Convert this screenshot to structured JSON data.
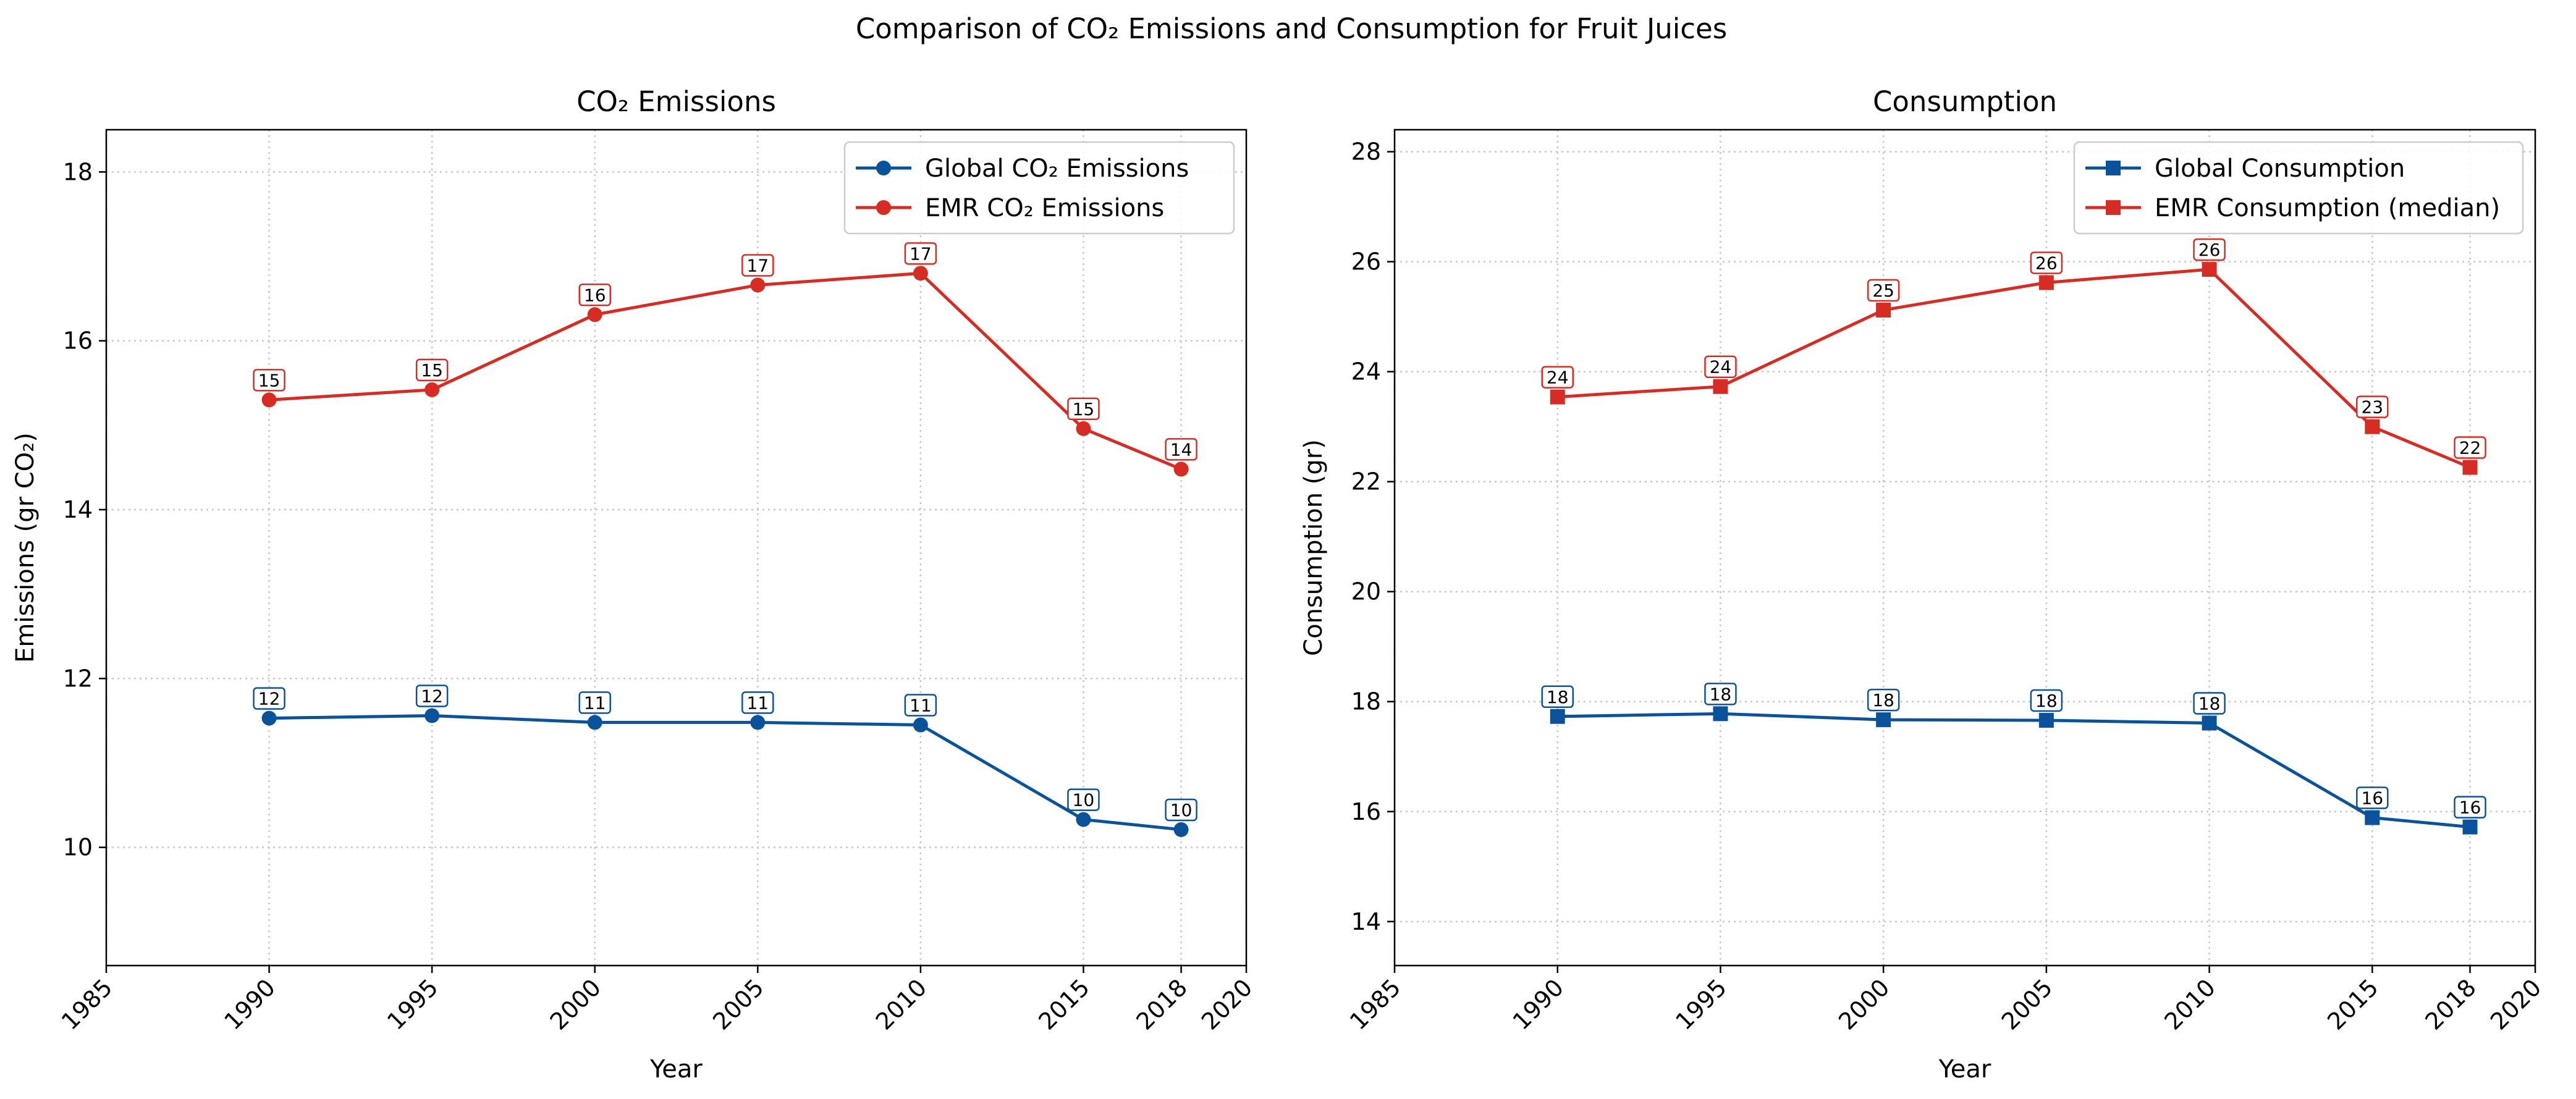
{
  "figure": {
    "title": "Comparison of CO₂ Emissions and Consumption for Fruit Juices"
  },
  "chart_data": [
    {
      "type": "line",
      "title": "CO₂ Emissions",
      "xlabel": "Year",
      "ylabel": "Emissions (gr CO₂)",
      "xlim": [
        1985,
        2020
      ],
      "ylim": [
        8.6,
        18.5
      ],
      "xticks": [
        1985,
        1990,
        1995,
        2000,
        2005,
        2010,
        2015,
        2018,
        2020
      ],
      "yticks": [
        10,
        12,
        14,
        16,
        18
      ],
      "grid": true,
      "legend_position": "top-right",
      "marker": "circle",
      "x": [
        1990,
        1995,
        2000,
        2005,
        2010,
        2015,
        2018
      ],
      "series": [
        {
          "name": "Global CO₂ Emissions",
          "color": "#0a539a",
          "values": [
            11.53,
            11.56,
            11.48,
            11.48,
            11.45,
            10.33,
            10.21
          ],
          "labels": [
            "12",
            "12",
            "11",
            "11",
            "11",
            "10",
            "10"
          ]
        },
        {
          "name": "EMR CO₂ Emissions",
          "color": "#d62c24",
          "values": [
            15.3,
            15.42,
            16.31,
            16.66,
            16.8,
            14.96,
            14.48
          ],
          "labels": [
            "15",
            "15",
            "16",
            "17",
            "17",
            "15",
            "14"
          ]
        }
      ]
    },
    {
      "type": "line",
      "title": "Consumption",
      "xlabel": "Year",
      "ylabel": "Consumption (gr)",
      "xlim": [
        1985,
        2020
      ],
      "ylim": [
        13.2,
        28.4
      ],
      "xticks": [
        1985,
        1990,
        1995,
        2000,
        2005,
        2010,
        2015,
        2018,
        2020
      ],
      "yticks": [
        14,
        16,
        18,
        20,
        22,
        24,
        26,
        28
      ],
      "grid": true,
      "legend_position": "top-right",
      "marker": "square",
      "x": [
        1990,
        1995,
        2000,
        2005,
        2010,
        2015,
        2018
      ],
      "series": [
        {
          "name": "Global Consumption",
          "color": "#0a539a",
          "values": [
            17.73,
            17.78,
            17.67,
            17.66,
            17.61,
            15.89,
            15.72
          ],
          "labels": [
            "18",
            "18",
            "18",
            "18",
            "18",
            "16",
            "16"
          ]
        },
        {
          "name": "EMR Consumption (median)",
          "color": "#d62c24",
          "values": [
            23.54,
            23.73,
            25.12,
            25.62,
            25.86,
            23.0,
            22.26
          ],
          "labels": [
            "24",
            "24",
            "25",
            "26",
            "26",
            "23",
            "22"
          ]
        }
      ]
    }
  ]
}
